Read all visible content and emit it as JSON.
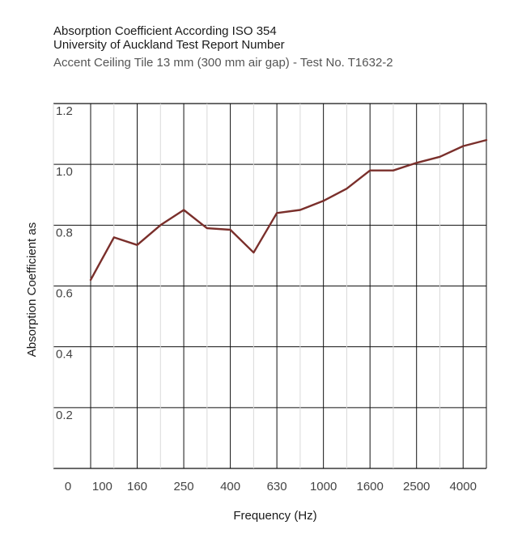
{
  "header": {
    "title_line1": "Absorption Coefficient According ISO 354",
    "title_line2": "University of Auckland Test Report Number",
    "subtitle": "Accent Ceiling Tile 13 mm (300 mm air gap) - Test No. T1632-2"
  },
  "chart_data": {
    "type": "line",
    "xlabel": "Frequency (Hz)",
    "ylabel": "Absorption Coefficient as",
    "ylim": [
      0,
      1.2
    ],
    "y_ticks": [
      "0.2",
      "0.4",
      "0.6",
      "0.8",
      "1.0",
      "1.2"
    ],
    "x_origin_label": "0",
    "x_tick_labels": [
      "100",
      "160",
      "250",
      "400",
      "630",
      "1000",
      "1600",
      "2500",
      "4000"
    ],
    "grid": true,
    "legend": "none",
    "line_color": "#7a2f2b",
    "series": [
      {
        "x": [
          100,
          125,
          160,
          200,
          250,
          315,
          400,
          500,
          630,
          800,
          1000,
          1250,
          1600,
          2000,
          2500,
          3150,
          4000,
          5000
        ],
        "values": [
          0.62,
          0.76,
          0.735,
          0.8,
          0.85,
          0.79,
          0.785,
          0.71,
          0.84,
          0.85,
          0.88,
          0.92,
          0.98,
          0.98,
          1.005,
          1.025,
          1.06,
          1.08
        ]
      }
    ]
  }
}
